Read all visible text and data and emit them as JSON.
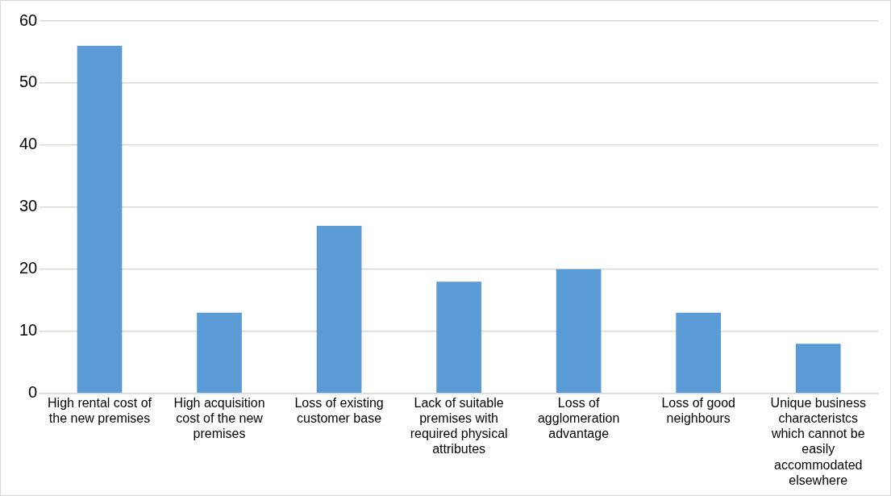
{
  "chart_data": {
    "type": "bar",
    "categories": [
      "High rental cost of the new premises",
      "High acquisition cost of the new premises",
      "Loss of existing customer base",
      "Lack of suitable premises with required physical attributes",
      "Loss of agglomeration advantage",
      "Loss of good neighbours",
      "Unique business characteristcs which cannot be easily accommodated elsewhere"
    ],
    "values": [
      56,
      13,
      27,
      18,
      20,
      13,
      8
    ],
    "color": "#5b9bd5",
    "ylim": [
      0,
      60
    ],
    "yticks": [
      0,
      10,
      20,
      30,
      40,
      50,
      60
    ],
    "grid": "y",
    "legend": false
  }
}
